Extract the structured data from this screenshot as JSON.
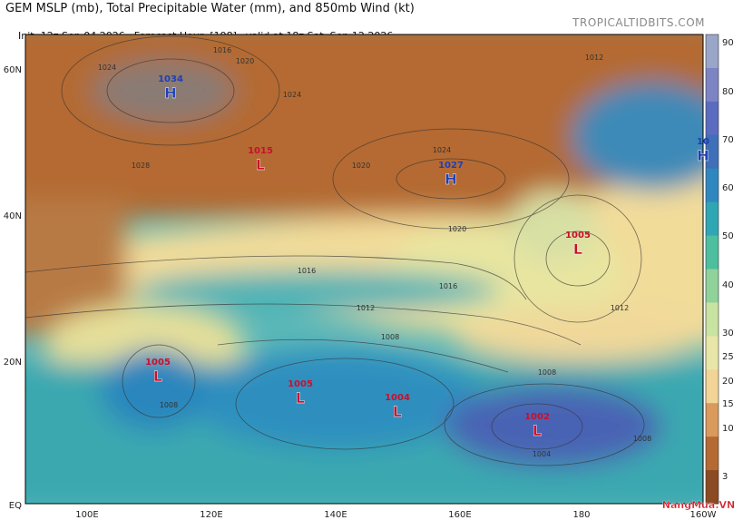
{
  "header": {
    "title": "GEM MSLP (mb), Total Precipitable Water (mm), and 850mb Wind (kt)",
    "init": "Init: 12z Sep 04 2026",
    "forecast_hour": "Forecast Hour: [198]",
    "valid": "valid at 18z Sat, Sep 12 2026",
    "site": "TROPICALTIDBITS.COM"
  },
  "map": {
    "lat_labels": [
      "60N",
      "40N",
      "20N",
      "EQ"
    ],
    "lon_labels": [
      "100E",
      "120E",
      "140E",
      "160E",
      "180",
      "160W"
    ],
    "centers": [
      {
        "kind": "H",
        "pressure": "1034"
      },
      {
        "kind": "L",
        "pressure": "1015"
      },
      {
        "kind": "H",
        "pressure": "1027"
      },
      {
        "kind": "H",
        "pressure": "10"
      },
      {
        "kind": "L",
        "pressure": "1005"
      },
      {
        "kind": "L",
        "pressure": "1005"
      },
      {
        "kind": "L",
        "pressure": "1005"
      },
      {
        "kind": "L",
        "pressure": "1004"
      },
      {
        "kind": "L",
        "pressure": "1002"
      }
    ],
    "isobar_labels": [
      "1024",
      "1028",
      "1016",
      "1020",
      "1024",
      "1020",
      "1024",
      "1020",
      "1016",
      "1012",
      "1016",
      "1012",
      "1008",
      "1008",
      "1008",
      "1004",
      "1012",
      "1008"
    ]
  },
  "colorbar": {
    "labels": [
      "90",
      "80",
      "70",
      "60",
      "50",
      "40",
      "30",
      "25",
      "20",
      "15",
      "10",
      "3"
    ]
  },
  "watermark": "NangMua.VN"
}
